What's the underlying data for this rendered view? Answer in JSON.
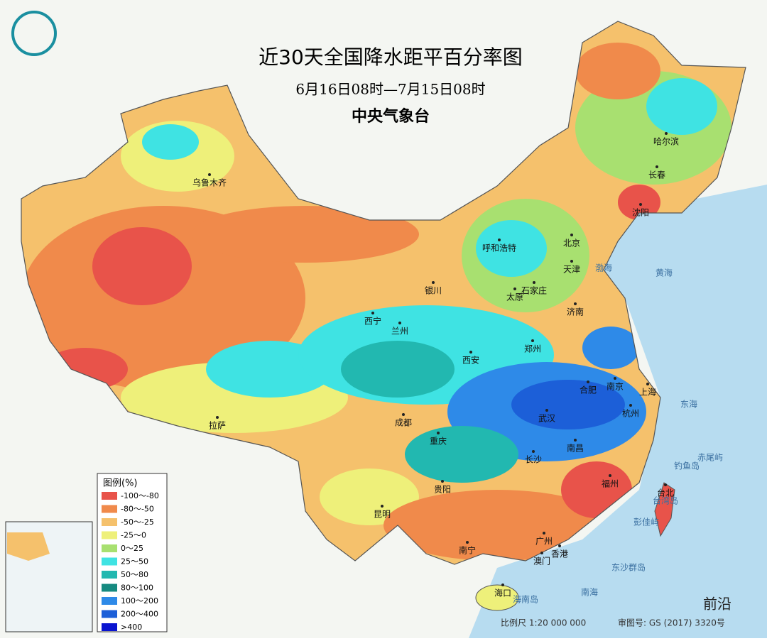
{
  "header": {
    "title": "近30天全国降水距平百分率图",
    "subtitle": "6月16日08时—7月15日08时",
    "agency": "中央气象台"
  },
  "legend": {
    "title": "图例(%)",
    "items": [
      {
        "label": "-100～-80",
        "color": "#e8534a"
      },
      {
        "label": "-80～-50",
        "color": "#f08a4b"
      },
      {
        "label": "-50～-25",
        "color": "#f5c16c"
      },
      {
        "label": "-25～0",
        "color": "#eef07a"
      },
      {
        "label": "0～25",
        "color": "#a8e070"
      },
      {
        "label": "25～50",
        "color": "#3fe3e3"
      },
      {
        "label": "50～80",
        "color": "#22b8b0"
      },
      {
        "label": "80～100",
        "color": "#168a80"
      },
      {
        "label": "100～200",
        "color": "#2e8ae8"
      },
      {
        "label": "200～400",
        "color": "#1c5fd8"
      },
      {
        "label": ">400",
        "color": "#0a14d0"
      }
    ]
  },
  "cities": [
    "乌鲁木齐",
    "哈尔滨",
    "长春",
    "沈阳",
    "呼和浩特",
    "北京",
    "天津",
    "石家庄",
    "太原",
    "银川",
    "济南",
    "西宁",
    "兰州",
    "郑州",
    "西安",
    "合肥",
    "南京",
    "上海",
    "成都",
    "武汉",
    "杭州",
    "拉萨",
    "重庆",
    "南昌",
    "长沙",
    "福州",
    "贵阳",
    "台北",
    "昆明",
    "南宁",
    "广州",
    "香港",
    "澳门",
    "海口"
  ],
  "places": [
    "渤海",
    "黄海",
    "东海",
    "南海",
    "海南岛",
    "台湾岛",
    "赤尾屿",
    "钓鱼岛",
    "彭佳屿",
    "东沙群岛"
  ],
  "footer": {
    "scale": "比例尺 1:20 000 000",
    "approval": "审图号: GS (2017) 3320号",
    "watermark": "前沿"
  }
}
